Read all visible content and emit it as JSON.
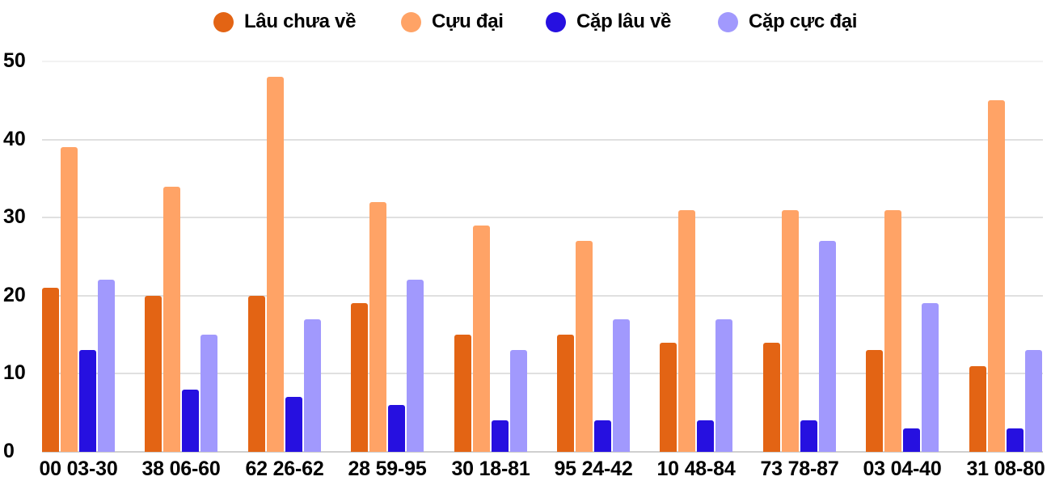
{
  "legend": [
    {
      "label": "Lâu chưa về",
      "color": "#e36414"
    },
    {
      "label": "Cựu đại",
      "color": "#ffa366"
    },
    {
      "label": "Cặp lâu về",
      "color": "#2610e0"
    },
    {
      "label": "Cặp cực đại",
      "color": "#a199fd"
    }
  ],
  "y_ticks": [
    "0",
    "10",
    "20",
    "30",
    "40",
    "50"
  ],
  "chart_data": {
    "type": "bar",
    "title": "",
    "xlabel": "",
    "ylabel": "",
    "ylim": [
      0,
      50
    ],
    "grid": true,
    "legend_position": "top",
    "categories": [
      "00 03-30",
      "38 06-60",
      "62 26-62",
      "28 59-95",
      "30 18-81",
      "95 24-42",
      "10 48-84",
      "73 78-87",
      "03 04-40",
      "31 08-80"
    ],
    "series": [
      {
        "name": "Lâu chưa về",
        "color": "#e36414",
        "values": [
          21,
          20,
          20,
          19,
          15,
          15,
          14,
          14,
          13,
          11
        ]
      },
      {
        "name": "Cựu đại",
        "color": "#ffa366",
        "values": [
          39,
          34,
          48,
          32,
          29,
          27,
          31,
          31,
          31,
          45
        ]
      },
      {
        "name": "Cặp lâu về",
        "color": "#2610e0",
        "values": [
          13,
          8,
          7,
          6,
          4,
          4,
          4,
          4,
          3,
          3
        ]
      },
      {
        "name": "Cặp cực đại",
        "color": "#a199fd",
        "values": [
          22,
          15,
          17,
          22,
          13,
          17,
          17,
          27,
          19,
          13
        ]
      }
    ]
  }
}
